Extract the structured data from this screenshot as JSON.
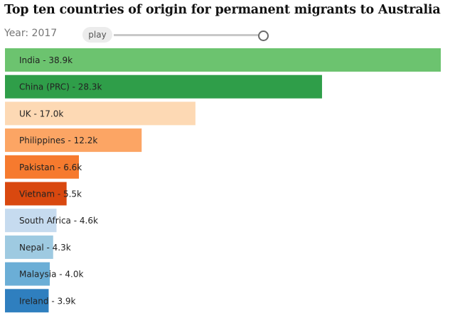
{
  "chart_data": {
    "type": "bar",
    "orientation": "horizontal",
    "title": "Top ten countries of origin for permanent migrants to Australia",
    "categories": [
      "India",
      "China (PRC)",
      "UK",
      "Philippines",
      "Pakistan",
      "Vietnam",
      "South Africa",
      "Nepal",
      "Malaysia",
      "Ireland"
    ],
    "values": [
      38.9,
      28.3,
      17.0,
      12.2,
      6.6,
      5.5,
      4.6,
      4.3,
      4.0,
      3.9
    ],
    "unit_suffix": "k",
    "labels": [
      "India - 38.9k",
      "China (PRC) - 28.3k",
      "UK - 17.0k",
      "Philippines - 12.2k",
      "Pakistan - 6.6k",
      "Vietnam - 5.5k",
      "South Africa - 4.6k",
      "Nepal - 4.3k",
      "Malaysia - 4.0k",
      "Ireland - 3.9k"
    ],
    "colors": [
      "#6cc36f",
      "#2f9e49",
      "#fdd9b4",
      "#fca564",
      "#f67a2e",
      "#d9480f",
      "#c6dbef",
      "#9ecae1",
      "#6baed6",
      "#2f7fbf"
    ],
    "xlim": [
      0,
      38.9
    ],
    "grid": false,
    "legend": "none"
  },
  "controls": {
    "year_label": "Year: 2017",
    "play_label": "play",
    "slider_level": 1.0
  }
}
